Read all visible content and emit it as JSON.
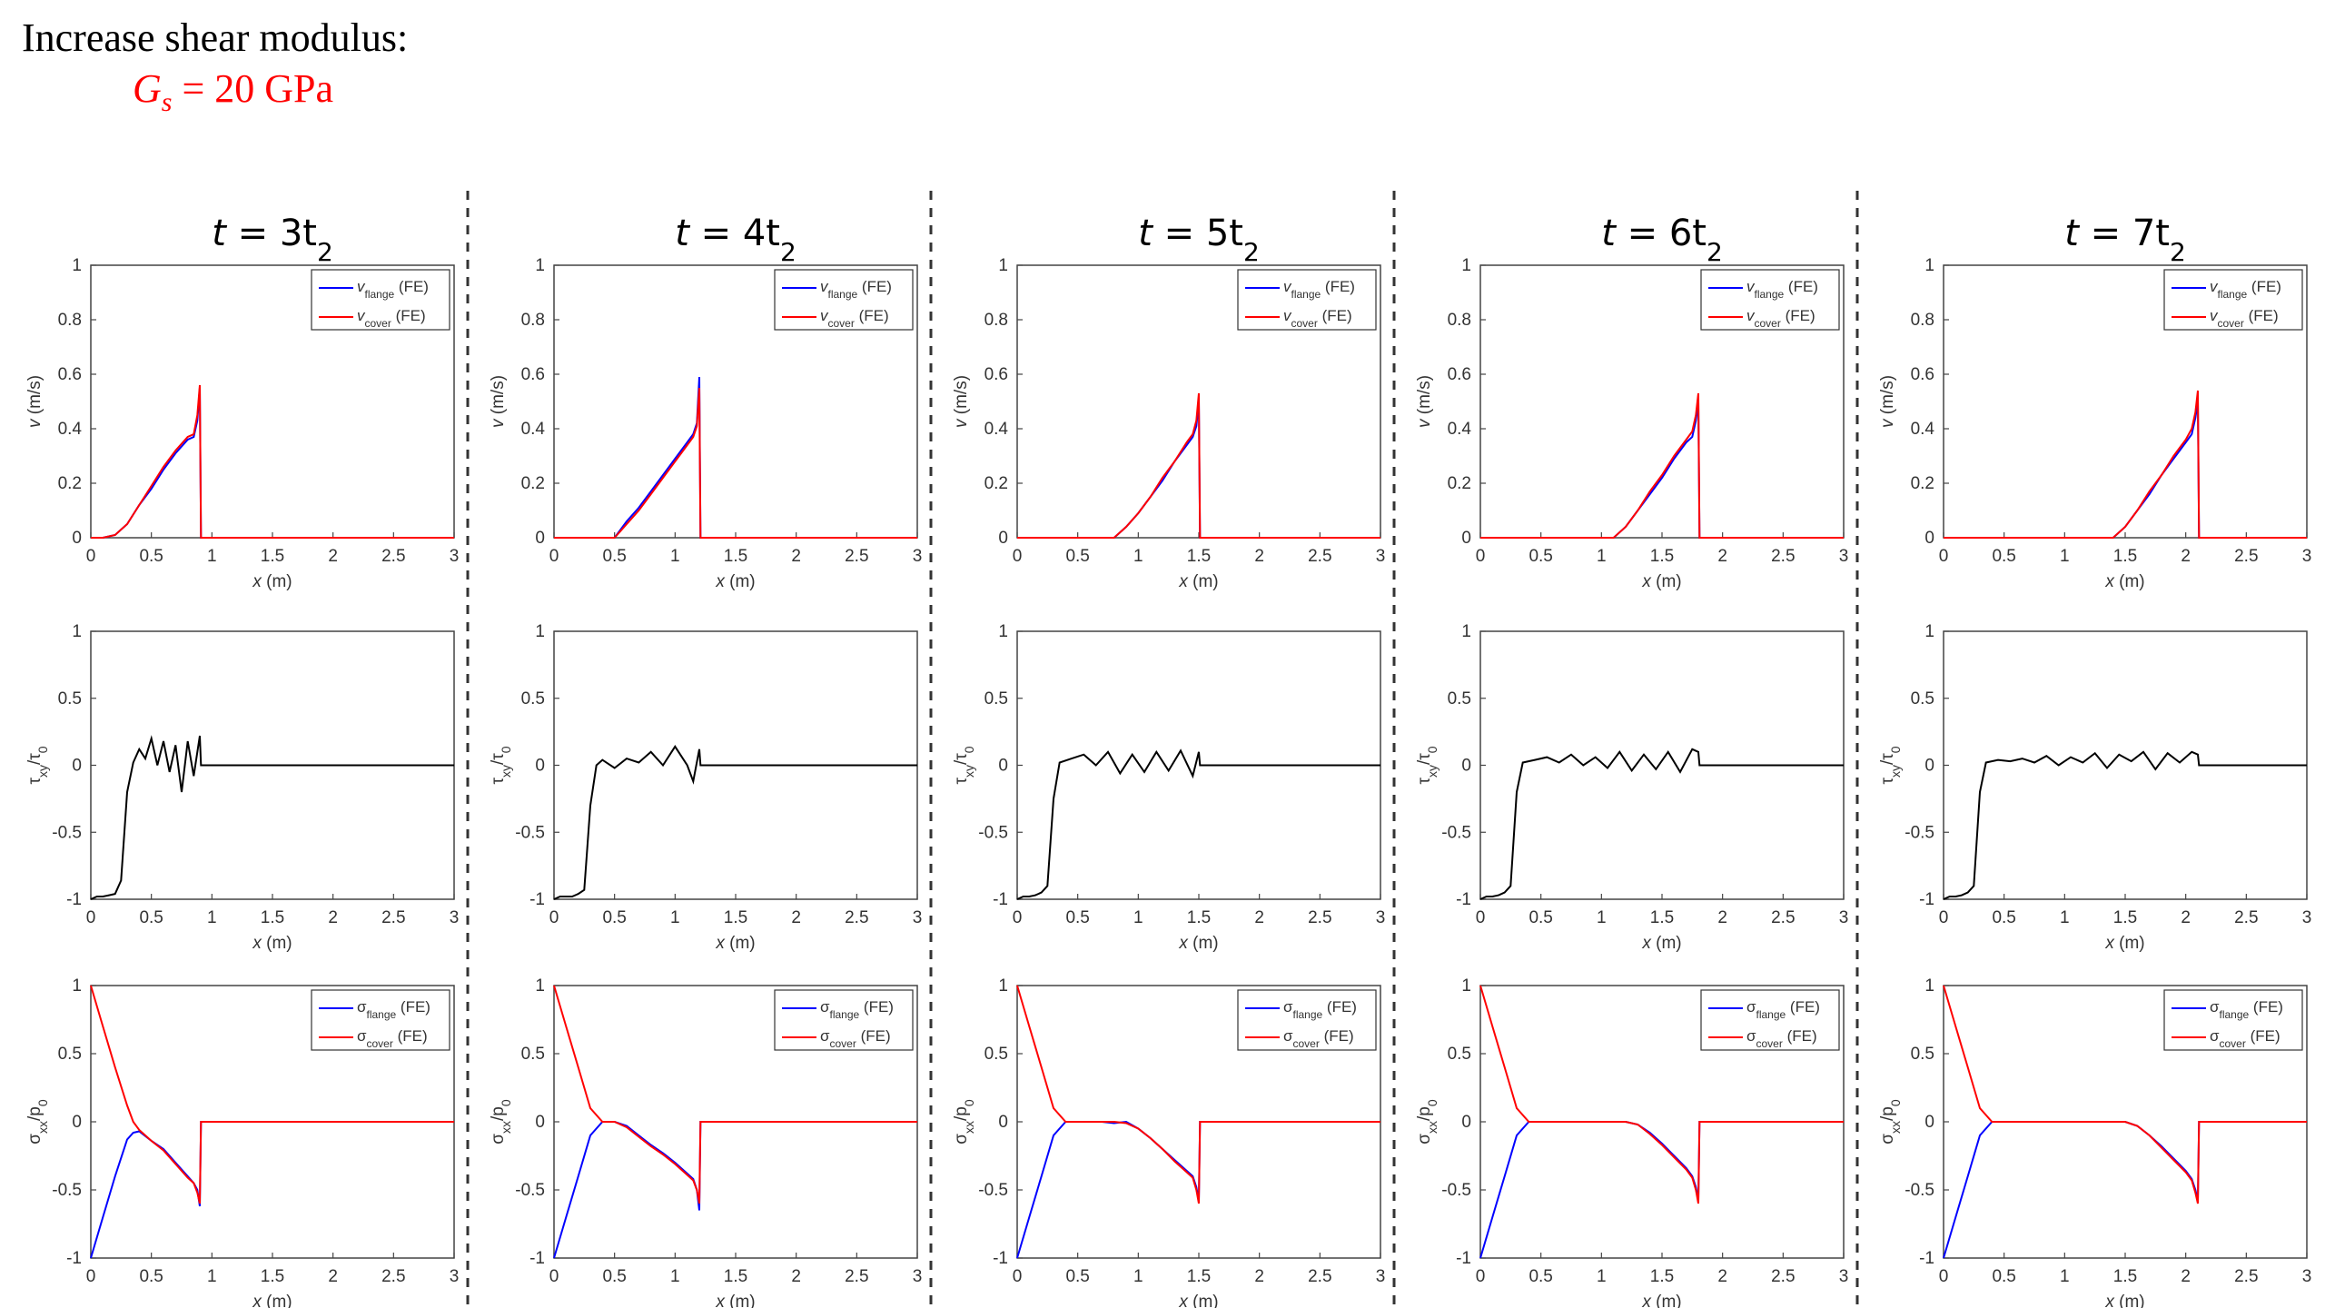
{
  "heading": {
    "text": "Increase shear modulus:",
    "param_symbol": "G",
    "param_sub": "s",
    "param_value": "= 20 GPa"
  },
  "colors": {
    "flange": "#0000ff",
    "cover": "#ff0000",
    "tau": "#000000",
    "heading_param": "#ff0000"
  },
  "chart_data": {
    "type": "line",
    "grid": false,
    "legend_placement": "top-right",
    "columns": [
      {
        "title": "t = 3t",
        "title_sub": "2",
        "front": 0.9
      },
      {
        "title": "t = 4t",
        "title_sub": "2",
        "front": 1.2
      },
      {
        "title": "t = 5t",
        "title_sub": "2",
        "front": 1.5
      },
      {
        "title": "t = 6t",
        "title_sub": "2",
        "front": 1.8
      },
      {
        "title": "t = 7t",
        "title_sub": "2",
        "front": 2.1
      }
    ],
    "rows": [
      {
        "name": "velocity",
        "xlabel": "x (m)",
        "ylabel": "v (m/s)",
        "xlim": [
          0,
          3
        ],
        "ylim": [
          0,
          1
        ],
        "xticks": [
          "0",
          "0.5",
          "1",
          "1.5",
          "2",
          "2.5",
          "3"
        ],
        "yticks": [
          "0",
          "0.2",
          "0.4",
          "0.6",
          "0.8",
          "1"
        ],
        "series": [
          {
            "name": "v",
            "name_sub": "flange",
            "suffix": "(FE)",
            "color": "#0000ff"
          },
          {
            "name": "v",
            "name_sub": "cover",
            "suffix": "(FE)",
            "color": "#ff0000"
          }
        ],
        "panels": [
          {
            "x": [
              0,
              0.1,
              0.2,
              0.3,
              0.4,
              0.5,
              0.6,
              0.7,
              0.8,
              0.85,
              0.88,
              0.9,
              0.91,
              3
            ],
            "flange": [
              0,
              0,
              0.01,
              0.05,
              0.12,
              0.18,
              0.25,
              0.31,
              0.36,
              0.37,
              0.43,
              0.55,
              0,
              0
            ],
            "cover": [
              0,
              0,
              0.01,
              0.05,
              0.12,
              0.19,
              0.26,
              0.32,
              0.37,
              0.38,
              0.45,
              0.56,
              0,
              0
            ]
          },
          {
            "x": [
              0,
              0.5,
              0.6,
              0.7,
              0.8,
              0.9,
              1.0,
              1.1,
              1.15,
              1.18,
              1.2,
              1.21,
              3
            ],
            "flange": [
              0,
              0,
              0.06,
              0.11,
              0.17,
              0.23,
              0.29,
              0.35,
              0.38,
              0.42,
              0.59,
              0,
              0
            ],
            "cover": [
              0,
              0,
              0.05,
              0.1,
              0.16,
              0.22,
              0.28,
              0.34,
              0.37,
              0.41,
              0.55,
              0,
              0
            ]
          },
          {
            "x": [
              0,
              0.8,
              0.9,
              1.0,
              1.1,
              1.2,
              1.3,
              1.4,
              1.45,
              1.48,
              1.5,
              1.51,
              3
            ],
            "flange": [
              0,
              0,
              0.04,
              0.09,
              0.15,
              0.21,
              0.28,
              0.34,
              0.37,
              0.41,
              0.5,
              0,
              0
            ],
            "cover": [
              0,
              0,
              0.04,
              0.09,
              0.15,
              0.22,
              0.28,
              0.35,
              0.38,
              0.43,
              0.53,
              0,
              0
            ]
          },
          {
            "x": [
              0,
              1.1,
              1.2,
              1.3,
              1.4,
              1.5,
              1.6,
              1.7,
              1.75,
              1.78,
              1.8,
              1.81,
              3
            ],
            "flange": [
              0,
              0,
              0.04,
              0.1,
              0.16,
              0.22,
              0.29,
              0.35,
              0.37,
              0.43,
              0.5,
              0,
              0
            ],
            "cover": [
              0,
              0,
              0.04,
              0.1,
              0.17,
              0.23,
              0.3,
              0.36,
              0.39,
              0.45,
              0.53,
              0,
              0
            ]
          },
          {
            "x": [
              0,
              1.4,
              1.5,
              1.6,
              1.7,
              1.8,
              1.9,
              2.0,
              2.05,
              2.08,
              2.1,
              2.11,
              3
            ],
            "flange": [
              0,
              0,
              0.04,
              0.1,
              0.16,
              0.23,
              0.29,
              0.35,
              0.38,
              0.44,
              0.5,
              0,
              0
            ],
            "cover": [
              0,
              0,
              0.04,
              0.1,
              0.17,
              0.23,
              0.3,
              0.36,
              0.4,
              0.46,
              0.54,
              0,
              0
            ]
          }
        ]
      },
      {
        "name": "shear",
        "xlabel": "x (m)",
        "ylabel": "τ",
        "ylabel_sub": "xy",
        "ylabel_den": "/τ",
        "ylabel_den_sub": "0",
        "xlim": [
          0,
          3
        ],
        "ylim": [
          -1,
          1
        ],
        "xticks": [
          "0",
          "0.5",
          "1",
          "1.5",
          "2",
          "2.5",
          "3"
        ],
        "yticks": [
          "-1",
          "-0.5",
          "0",
          "0.5",
          "1"
        ],
        "series": [
          {
            "name": "τxy/τ0",
            "color": "#000000"
          }
        ],
        "panels": [
          {
            "x": [
              0,
              0.05,
              0.1,
              0.15,
              0.2,
              0.25,
              0.3,
              0.35,
              0.4,
              0.45,
              0.5,
              0.55,
              0.6,
              0.65,
              0.7,
              0.75,
              0.8,
              0.85,
              0.9,
              0.91,
              3
            ],
            "tau": [
              -1,
              -0.98,
              -0.98,
              -0.97,
              -0.96,
              -0.86,
              -0.2,
              0.02,
              0.12,
              0.05,
              0.2,
              0.0,
              0.18,
              -0.05,
              0.15,
              -0.2,
              0.18,
              -0.08,
              0.22,
              0,
              0
            ]
          },
          {
            "x": [
              0,
              0.05,
              0.1,
              0.15,
              0.2,
              0.25,
              0.3,
              0.35,
              0.4,
              0.5,
              0.6,
              0.7,
              0.8,
              0.9,
              1.0,
              1.1,
              1.15,
              1.2,
              1.21,
              3
            ],
            "tau": [
              -1,
              -0.98,
              -0.98,
              -0.98,
              -0.96,
              -0.93,
              -0.3,
              0.0,
              0.04,
              -0.02,
              0.05,
              0.02,
              0.1,
              0.0,
              0.14,
              0.0,
              -0.12,
              0.12,
              0,
              0
            ]
          },
          {
            "x": [
              0,
              0.05,
              0.1,
              0.15,
              0.2,
              0.25,
              0.3,
              0.35,
              0.45,
              0.55,
              0.65,
              0.75,
              0.85,
              0.95,
              1.05,
              1.15,
              1.25,
              1.35,
              1.45,
              1.5,
              1.51,
              3
            ],
            "tau": [
              -1,
              -0.98,
              -0.98,
              -0.97,
              -0.95,
              -0.9,
              -0.25,
              0.02,
              0.05,
              0.08,
              0.0,
              0.1,
              -0.06,
              0.08,
              -0.05,
              0.1,
              -0.04,
              0.11,
              -0.08,
              0.1,
              0,
              0
            ]
          },
          {
            "x": [
              0,
              0.05,
              0.1,
              0.15,
              0.2,
              0.25,
              0.3,
              0.35,
              0.45,
              0.55,
              0.65,
              0.75,
              0.85,
              0.95,
              1.05,
              1.15,
              1.25,
              1.35,
              1.45,
              1.55,
              1.65,
              1.75,
              1.8,
              1.81,
              3
            ],
            "tau": [
              -1,
              -0.98,
              -0.98,
              -0.97,
              -0.95,
              -0.9,
              -0.2,
              0.02,
              0.04,
              0.06,
              0.02,
              0.08,
              0.0,
              0.06,
              -0.02,
              0.1,
              -0.04,
              0.08,
              -0.03,
              0.1,
              -0.05,
              0.12,
              0.1,
              0,
              0
            ]
          },
          {
            "x": [
              0,
              0.05,
              0.1,
              0.15,
              0.2,
              0.25,
              0.3,
              0.35,
              0.45,
              0.55,
              0.65,
              0.75,
              0.85,
              0.95,
              1.05,
              1.15,
              1.25,
              1.35,
              1.45,
              1.55,
              1.65,
              1.75,
              1.85,
              1.95,
              2.05,
              2.1,
              2.11,
              3
            ],
            "tau": [
              -1,
              -0.98,
              -0.98,
              -0.97,
              -0.95,
              -0.9,
              -0.2,
              0.02,
              0.04,
              0.03,
              0.05,
              0.02,
              0.07,
              0.0,
              0.06,
              0.02,
              0.09,
              -0.02,
              0.08,
              0.03,
              0.1,
              -0.03,
              0.09,
              0.02,
              0.1,
              0.08,
              0,
              0
            ]
          }
        ]
      },
      {
        "name": "normal",
        "xlabel": "x (m)",
        "ylabel": "σ",
        "ylabel_sub": "xx",
        "ylabel_den": "/p",
        "ylabel_den_sub": "0",
        "xlim": [
          0,
          3
        ],
        "ylim": [
          -1,
          1
        ],
        "xticks": [
          "0",
          "0.5",
          "1",
          "1.5",
          "2",
          "2.5",
          "3"
        ],
        "yticks": [
          "-1",
          "-0.5",
          "0",
          "0.5",
          "1"
        ],
        "series": [
          {
            "name": "σ",
            "name_sub": "flange",
            "suffix": "(FE)",
            "color": "#0000ff"
          },
          {
            "name": "σ",
            "name_sub": "cover",
            "suffix": "(FE)",
            "color": "#ff0000"
          }
        ],
        "panels": [
          {
            "x": [
              0,
              0.1,
              0.2,
              0.3,
              0.35,
              0.4,
              0.5,
              0.6,
              0.7,
              0.8,
              0.85,
              0.88,
              0.9,
              0.91,
              3
            ],
            "flange": [
              -1,
              -0.7,
              -0.4,
              -0.13,
              -0.08,
              -0.07,
              -0.14,
              -0.2,
              -0.3,
              -0.4,
              -0.45,
              -0.5,
              -0.62,
              0,
              0
            ],
            "cover": [
              1,
              0.7,
              0.4,
              0.12,
              0.0,
              -0.06,
              -0.14,
              -0.21,
              -0.31,
              -0.41,
              -0.45,
              -0.52,
              -0.6,
              0,
              0
            ]
          },
          {
            "x": [
              0,
              0.1,
              0.2,
              0.3,
              0.4,
              0.5,
              0.6,
              0.7,
              0.8,
              0.9,
              1.0,
              1.1,
              1.15,
              1.18,
              1.2,
              1.21,
              3
            ],
            "flange": [
              -1,
              -0.7,
              -0.4,
              -0.1,
              0.0,
              0.0,
              -0.03,
              -0.1,
              -0.17,
              -0.23,
              -0.3,
              -0.38,
              -0.42,
              -0.5,
              -0.65,
              0,
              0
            ],
            "cover": [
              1,
              0.7,
              0.4,
              0.1,
              0.0,
              0.0,
              -0.04,
              -0.11,
              -0.18,
              -0.24,
              -0.31,
              -0.39,
              -0.43,
              -0.5,
              -0.6,
              0,
              0
            ]
          },
          {
            "x": [
              0,
              0.1,
              0.2,
              0.3,
              0.4,
              0.5,
              0.6,
              0.7,
              0.8,
              0.9,
              1.0,
              1.1,
              1.2,
              1.3,
              1.4,
              1.45,
              1.48,
              1.5,
              1.51,
              3
            ],
            "flange": [
              -1,
              -0.7,
              -0.4,
              -0.1,
              0.0,
              0.0,
              0.0,
              0.0,
              -0.01,
              0.0,
              -0.05,
              -0.12,
              -0.2,
              -0.28,
              -0.36,
              -0.4,
              -0.48,
              -0.58,
              0,
              0
            ],
            "cover": [
              1,
              0.7,
              0.4,
              0.1,
              0.0,
              0.0,
              0.0,
              0.0,
              0.0,
              -0.01,
              -0.05,
              -0.12,
              -0.2,
              -0.29,
              -0.37,
              -0.41,
              -0.5,
              -0.6,
              0,
              0
            ]
          },
          {
            "x": [
              0,
              0.1,
              0.2,
              0.3,
              0.4,
              0.6,
              0.8,
              1.0,
              1.2,
              1.3,
              1.4,
              1.5,
              1.6,
              1.7,
              1.75,
              1.78,
              1.8,
              1.81,
              3
            ],
            "flange": [
              -1,
              -0.7,
              -0.4,
              -0.1,
              0.0,
              0.0,
              0.0,
              0.0,
              0.0,
              -0.02,
              -0.08,
              -0.16,
              -0.25,
              -0.34,
              -0.4,
              -0.48,
              -0.58,
              0,
              0
            ],
            "cover": [
              1,
              0.7,
              0.4,
              0.1,
              0.0,
              0.0,
              0.0,
              0.0,
              0.0,
              -0.02,
              -0.09,
              -0.17,
              -0.26,
              -0.35,
              -0.41,
              -0.5,
              -0.6,
              0,
              0
            ]
          },
          {
            "x": [
              0,
              0.1,
              0.2,
              0.3,
              0.4,
              0.6,
              0.8,
              1.0,
              1.2,
              1.4,
              1.5,
              1.6,
              1.7,
              1.8,
              1.9,
              2.0,
              2.05,
              2.08,
              2.1,
              2.11,
              3
            ],
            "flange": [
              -1,
              -0.7,
              -0.4,
              -0.1,
              0.0,
              0.0,
              0.0,
              0.0,
              0.0,
              0.0,
              0.0,
              -0.03,
              -0.1,
              -0.18,
              -0.27,
              -0.36,
              -0.42,
              -0.5,
              -0.58,
              0,
              0
            ],
            "cover": [
              1,
              0.7,
              0.4,
              0.1,
              0.0,
              0.0,
              0.0,
              0.0,
              0.0,
              0.0,
              0.0,
              -0.03,
              -0.1,
              -0.19,
              -0.28,
              -0.37,
              -0.43,
              -0.52,
              -0.6,
              0,
              0
            ]
          }
        ]
      }
    ]
  }
}
